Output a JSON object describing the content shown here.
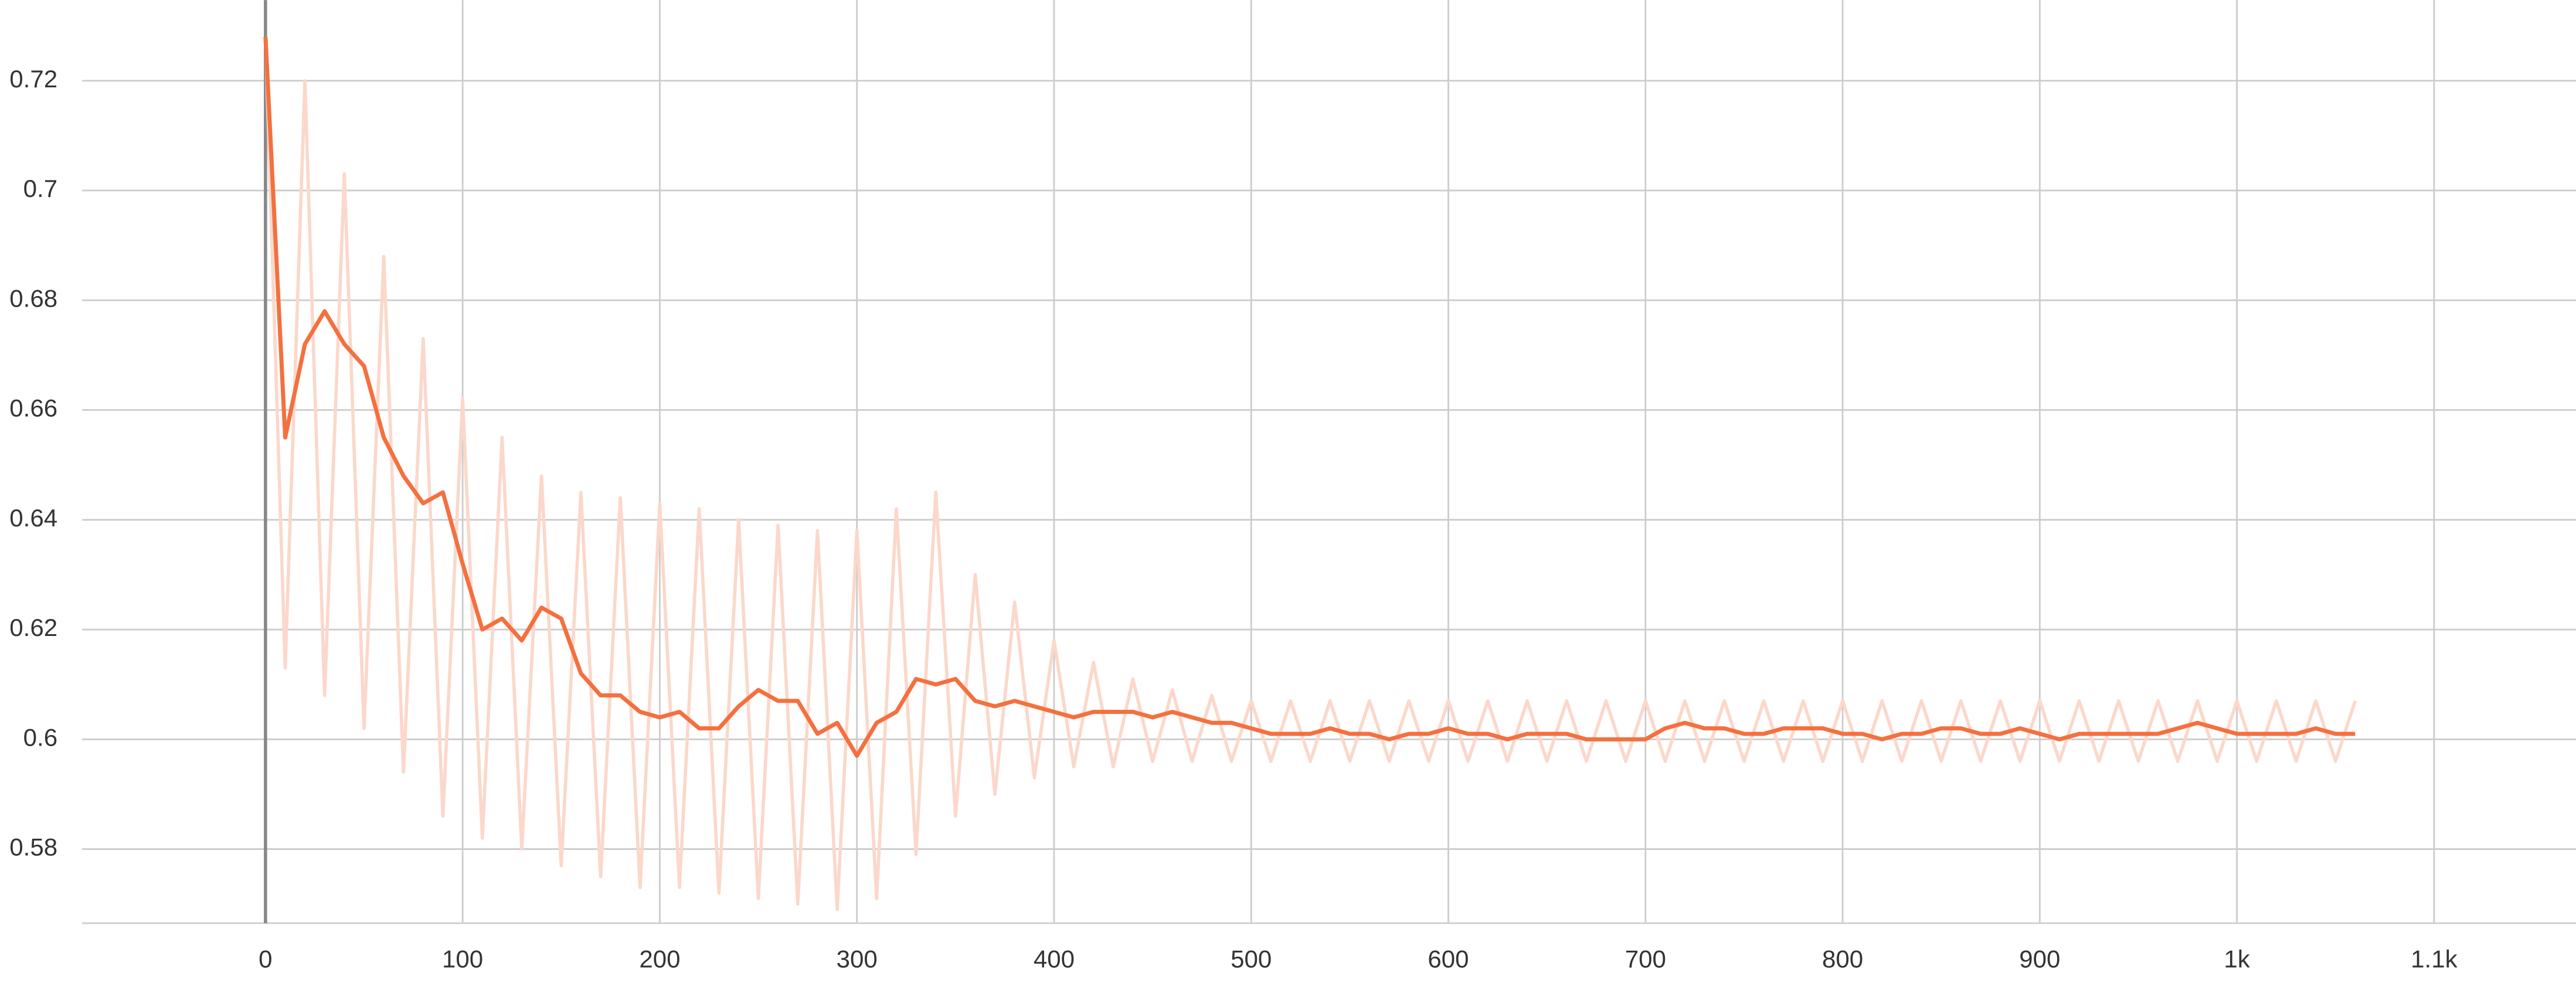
{
  "chart_data": {
    "type": "line",
    "x": [
      0,
      10,
      20,
      30,
      40,
      50,
      60,
      70,
      80,
      90,
      100,
      110,
      120,
      130,
      140,
      150,
      160,
      170,
      180,
      190,
      200,
      210,
      220,
      230,
      240,
      250,
      260,
      270,
      280,
      290,
      300,
      310,
      320,
      330,
      340,
      350,
      360,
      370,
      380,
      390,
      400,
      410,
      420,
      430,
      440,
      450,
      460,
      470,
      480,
      490,
      500,
      510,
      520,
      530,
      540,
      550,
      560,
      570,
      580,
      590,
      600,
      610,
      620,
      630,
      640,
      650,
      660,
      670,
      680,
      690,
      700,
      710,
      720,
      730,
      740,
      750,
      760,
      770,
      780,
      790,
      800,
      810,
      820,
      830,
      840,
      850,
      860,
      870,
      880,
      890,
      900,
      910,
      920,
      930,
      940,
      950,
      960,
      970,
      980,
      990,
      1000,
      1010,
      1020,
      1030,
      1040,
      1050,
      1060
    ],
    "series": [
      {
        "color": "#fbd8cb",
        "values": [
          0.728,
          0.613,
          0.72,
          0.608,
          0.703,
          0.602,
          0.688,
          0.594,
          0.673,
          0.586,
          0.662,
          0.582,
          0.655,
          0.58,
          0.648,
          0.577,
          0.645,
          0.575,
          0.644,
          0.573,
          0.643,
          0.573,
          0.642,
          0.572,
          0.64,
          0.571,
          0.639,
          0.57,
          0.638,
          0.569,
          0.638,
          0.571,
          0.642,
          0.579,
          0.645,
          0.586,
          0.63,
          0.59,
          0.625,
          0.593,
          0.618,
          0.595,
          0.614,
          0.595,
          0.611,
          0.596,
          0.609,
          0.596,
          0.608,
          0.596,
          0.607,
          0.596,
          0.607,
          0.596,
          0.607,
          0.596,
          0.607,
          0.596,
          0.607,
          0.596,
          0.607,
          0.596,
          0.607,
          0.596,
          0.607,
          0.596,
          0.607,
          0.596,
          0.607,
          0.596,
          0.607,
          0.596,
          0.607,
          0.596,
          0.607,
          0.596,
          0.607,
          0.596,
          0.607,
          0.596,
          0.607,
          0.596,
          0.607,
          0.596,
          0.607,
          0.596,
          0.607,
          0.596,
          0.607,
          0.596,
          0.607,
          0.596,
          0.607,
          0.596,
          0.607,
          0.596,
          0.607,
          0.596,
          0.607,
          0.596,
          0.607,
          0.596,
          0.607,
          0.596,
          0.607,
          0.596,
          0.607
        ]
      },
      {
        "color": "#f4703f",
        "values": [
          0.728,
          0.655,
          0.672,
          0.678,
          0.672,
          0.668,
          0.655,
          0.648,
          0.643,
          0.645,
          0.632,
          0.62,
          0.622,
          0.618,
          0.624,
          0.622,
          0.612,
          0.608,
          0.608,
          0.605,
          0.604,
          0.605,
          0.602,
          0.602,
          0.606,
          0.609,
          0.607,
          0.607,
          0.601,
          0.603,
          0.597,
          0.603,
          0.605,
          0.611,
          0.61,
          0.611,
          0.607,
          0.606,
          0.607,
          0.606,
          0.605,
          0.604,
          0.605,
          0.605,
          0.605,
          0.604,
          0.605,
          0.604,
          0.603,
          0.603,
          0.602,
          0.601,
          0.601,
          0.601,
          0.602,
          0.601,
          0.601,
          0.6,
          0.601,
          0.601,
          0.602,
          0.601,
          0.601,
          0.6,
          0.601,
          0.601,
          0.601,
          0.6,
          0.6,
          0.6,
          0.6,
          0.602,
          0.603,
          0.602,
          0.602,
          0.601,
          0.601,
          0.602,
          0.602,
          0.602,
          0.601,
          0.601,
          0.6,
          0.601,
          0.601,
          0.602,
          0.602,
          0.601,
          0.601,
          0.602,
          0.601,
          0.6,
          0.601,
          0.601,
          0.601,
          0.601,
          0.601,
          0.602,
          0.603,
          0.602,
          0.601,
          0.601,
          0.601,
          0.601,
          0.602,
          0.601,
          0.601
        ]
      }
    ],
    "xlim": [
      -93,
      1172
    ],
    "ylim": [
      0.5665,
      0.7347
    ],
    "xticks": [
      0,
      100,
      200,
      300,
      400,
      500,
      600,
      700,
      800,
      900,
      {
        "value": 1000,
        "label": "1k"
      },
      {
        "value": 1100,
        "label": "1.1k"
      }
    ],
    "yticks": [
      0.58,
      0.6,
      0.62,
      0.64,
      0.66,
      0.68,
      0.7,
      0.72
    ],
    "grid": true
  }
}
